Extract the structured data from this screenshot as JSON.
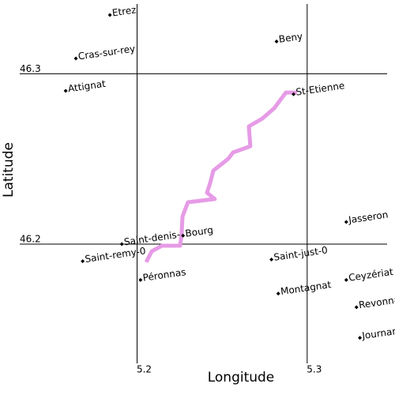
{
  "chart_data": {
    "type": "scatter",
    "x_label": "Longitude",
    "y_label": "Latitude",
    "xlim": [
      5.131,
      5.347
    ],
    "ylim": [
      46.13,
      46.341
    ],
    "xticks": [
      5.2,
      5.3
    ],
    "yticks": [
      46.2,
      46.3
    ],
    "grid": true,
    "point_color": "#000000",
    "labels": [
      "Etrez",
      "Cras-sur-rey",
      "Attignat",
      "Beny",
      "St-Etienne",
      "Jasseron",
      "Saint-denis-",
      "Bourg",
      "Saint-remy-0",
      "Péronnas",
      "Saint-just-0",
      "Montagnat",
      "Ceyzériat",
      "Revonnas",
      "Journans"
    ],
    "x": [
      5.184,
      5.164,
      5.158,
      5.282,
      5.292,
      5.323,
      5.191,
      5.227,
      5.168,
      5.202,
      5.279,
      5.283,
      5.323,
      5.329,
      5.331
    ],
    "y": [
      46.3345,
      46.309,
      46.29,
      46.319,
      46.288,
      46.213,
      46.2,
      46.205,
      46.19,
      46.179,
      46.191,
      46.171,
      46.179,
      46.163,
      46.145
    ],
    "route": {
      "color": "#e69be6",
      "x": [
        5.2053,
        5.2086,
        5.2146,
        5.2253,
        5.2262,
        5.2267,
        5.2299,
        5.2457,
        5.2411,
        5.2429,
        5.2448,
        5.2536,
        5.2564,
        5.2666,
        5.2657,
        5.2736,
        5.2806,
        5.2875,
        5.294
      ],
      "y": [
        46.1894,
        46.1958,
        46.1991,
        46.1991,
        46.206,
        46.2162,
        46.2246,
        46.2265,
        46.2302,
        46.2357,
        46.2431,
        46.2501,
        46.2538,
        46.2575,
        46.2691,
        46.2737,
        46.2798,
        46.289,
        46.289
      ]
    }
  }
}
